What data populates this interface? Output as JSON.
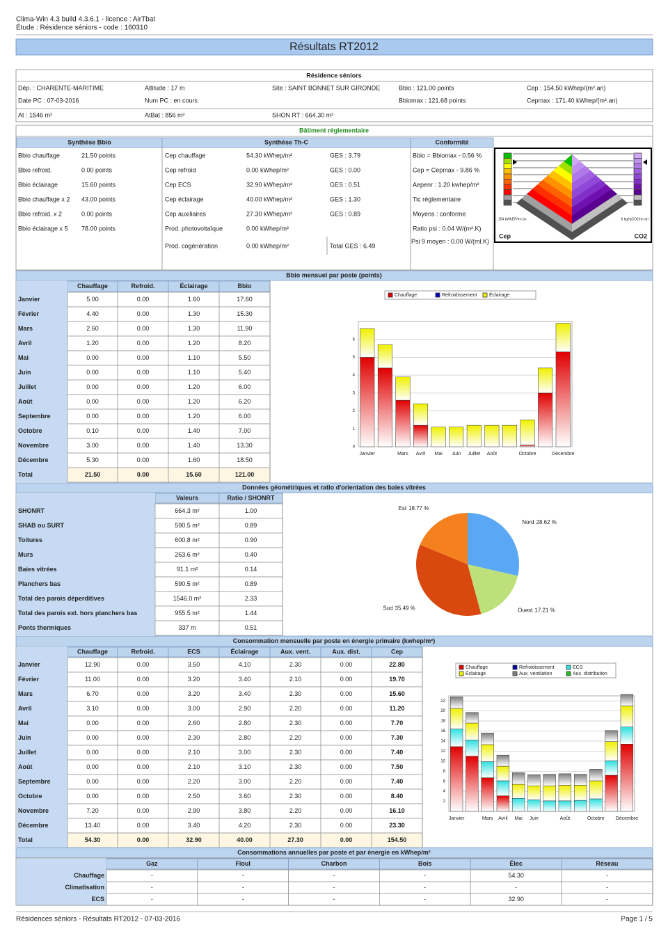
{
  "header": {
    "software": "Clima-Win 4.3 build 4.3.6.1 - licence : AirTbat",
    "study": "Étude : Résidence séniors - code : 160310"
  },
  "title": "Résultats RT2012",
  "info": {
    "title": "Résidence séniors",
    "rows": [
      [
        "Dép. :  CHARENTE-MARITIME",
        "Altitude : 17 m",
        "Site : SAINT BONNET SUR GIRONDE",
        "Bbio : 121.00 points",
        "Cep : 154.50 kWhep/(m².an)"
      ],
      [
        "Date PC : 07-03-2016",
        "Num PC : en cours",
        null,
        "Bbiomax : 121.68 points",
        "Cepmax : 171.40 kWhep/(m².an)"
      ],
      [
        "At : 1546 m²",
        "AtBat : 856 m²",
        "SHON RT : 664.30 m²",
        null,
        null
      ]
    ]
  },
  "batiment": {
    "title": "Bâtiment réglementaire",
    "bbio": {
      "title": "Synthèse Bbio",
      "rows": [
        [
          "Bbio chauffage",
          "21.50 points"
        ],
        [
          "Bbio refroid.",
          "0.00 points"
        ],
        [
          "Bbio éclairage",
          "15.60 points"
        ],
        [
          "Bbio chauffage x 2",
          "43.00 points"
        ],
        [
          "Bbio refroid. x 2",
          "0.00 points"
        ],
        [
          "Bbio éclairage x 5",
          "78.00 points"
        ]
      ]
    },
    "thc": {
      "title": "Synthèse Th-C",
      "rows": [
        [
          "Cep chauffage",
          "54.30 kWhep/m²",
          "GES : 3.79"
        ],
        [
          "Cep refroid",
          "0.00 kWhep/m²",
          "GES : 0.00"
        ],
        [
          "Cep ECS",
          "32.90 kWhep/m²",
          "GES : 0.51"
        ],
        [
          "Cep éclairage",
          "40.00 kWhep/m²",
          "GES : 1.30"
        ],
        [
          "Cep auxiliaires",
          "27.30 kWhep/m²",
          "GES : 0.89"
        ],
        [
          "Prod. photovoltaïque",
          "0.00 kWhep/m²",
          null
        ],
        [
          "Prod. cogénération",
          "0.00 kWhep/m²",
          "Total GES : 6.49"
        ]
      ]
    },
    "conformite": {
      "title": "Conformité",
      "rows": [
        "Bbio = Bbiomax - 0.56 %",
        "Cep = Cepmax - 9.86 %",
        "Aepenr : 1.20 kwhep/m²",
        "Tic réglementaire",
        "Moyens : conforme",
        "Ratio psi : 0.04 W/(m².K)",
        "Psi 9 moyen : 0.00 W/(ml.K)"
      ]
    },
    "graphic": {
      "cep": "Cep",
      "co2": "CO2",
      "cep_value": "154 kWhEP/m².an",
      "co2_value": "6 kgéqCO2/m².an"
    }
  },
  "bbio_mensuel": {
    "title": "Bbio mensuel par poste (points)",
    "columns": [
      null,
      "Chauffage",
      "Refroid.",
      "Éclairage",
      "Bbio"
    ],
    "rows": [
      [
        "Janvier",
        "5.00",
        "0.00",
        "1.60",
        "17.60"
      ],
      [
        "Février",
        "4.40",
        "0.00",
        "1.30",
        "15.30"
      ],
      [
        "Mars",
        "2.60",
        "0.00",
        "1.30",
        "11.90"
      ],
      [
        "Avril",
        "1.20",
        "0.00",
        "1.20",
        "8.20"
      ],
      [
        "Mai",
        "0.00",
        "0.00",
        "1.10",
        "5.50"
      ],
      [
        "Juin",
        "0.00",
        "0.00",
        "1.10",
        "5.40"
      ],
      [
        "Juillet",
        "0.00",
        "0.00",
        "1.20",
        "6.00"
      ],
      [
        "Août",
        "0.00",
        "0.00",
        "1.20",
        "6.20"
      ],
      [
        "Septembre",
        "0.00",
        "0.00",
        "1.20",
        "6.00"
      ],
      [
        "Octobre",
        "0.10",
        "0.00",
        "1.40",
        "7.00"
      ],
      [
        "Novembre",
        "3.00",
        "0.00",
        "1.40",
        "13.30"
      ],
      [
        "Décembre",
        "5.30",
        "0.00",
        "1.60",
        "18.50"
      ],
      [
        "Total",
        "21.50",
        "0.00",
        "15.60",
        "121.00"
      ]
    ]
  },
  "geometrie": {
    "title": "Données géométriques et ratio d'orientation des baies vitrées",
    "columns": [
      null,
      "Valeurs",
      "Ratio / SHONRT"
    ],
    "rows": [
      [
        "SHONRT",
        "664.3 m²",
        "1.00"
      ],
      [
        "SHAB ou SURT",
        "590.5 m²",
        "0.89"
      ],
      [
        "Toitures",
        "600.8 m²",
        "0.90"
      ],
      [
        "Murs",
        "263.6 m²",
        "0.40"
      ],
      [
        "Baies vitrées",
        "91.1 m²",
        "0.14"
      ],
      [
        "Planchers bas",
        "590.5 m²",
        "0.89"
      ],
      [
        "Total des parois déperditives",
        "1546.0 m²",
        "2.33"
      ],
      [
        "Total des parois ext. hors planchers bas",
        "955.5 m²",
        "1.44"
      ],
      [
        "Ponts thermiques",
        "337 m",
        "0.51"
      ]
    ]
  },
  "consommation": {
    "title": "Consommation mensuelle par poste en énergie primaire (kwhep/m²)",
    "columns": [
      null,
      "Chauffage",
      "Refroid.",
      "ECS",
      "Éclairage",
      "Aux. vent.",
      "Aux. dist.",
      "Cep"
    ],
    "rows": [
      [
        "Janvier",
        "12.90",
        "0.00",
        "3.50",
        "4.10",
        "2.30",
        "0.00",
        "22.80"
      ],
      [
        "Février",
        "11.00",
        "0.00",
        "3.20",
        "3.40",
        "2.10",
        "0.00",
        "19.70"
      ],
      [
        "Mars",
        "6.70",
        "0.00",
        "3.20",
        "3.40",
        "2.30",
        "0.00",
        "15.60"
      ],
      [
        "Avril",
        "3.10",
        "0.00",
        "3.00",
        "2.90",
        "2.20",
        "0.00",
        "11.20"
      ],
      [
        "Mai",
        "0.00",
        "0.00",
        "2.60",
        "2.80",
        "2.30",
        "0.00",
        "7.70"
      ],
      [
        "Juin",
        "0.00",
        "0.00",
        "2.30",
        "2.80",
        "2.20",
        "0.00",
        "7.30"
      ],
      [
        "Juillet",
        "0.00",
        "0.00",
        "2.10",
        "3.00",
        "2.30",
        "0.00",
        "7.40"
      ],
      [
        "Août",
        "0.00",
        "0.00",
        "2.10",
        "3.10",
        "2.30",
        "0.00",
        "7.50"
      ],
      [
        "Septembre",
        "0.00",
        "0.00",
        "2.20",
        "3.00",
        "2.20",
        "0.00",
        "7.40"
      ],
      [
        "Octobre",
        "0.00",
        "0.00",
        "2.50",
        "3.60",
        "2.30",
        "0.00",
        "8.40"
      ],
      [
        "Novembre",
        "7.20",
        "0.00",
        "2.90",
        "3.80",
        "2.20",
        "0.00",
        "16.10"
      ],
      [
        "Décembre",
        "13.40",
        "0.00",
        "3.40",
        "4.20",
        "2.30",
        "0.00",
        "23.30"
      ],
      [
        "Total",
        "54.30",
        "0.00",
        "32.90",
        "40.00",
        "27.30",
        "0.00",
        "154.50"
      ]
    ]
  },
  "annuelles": {
    "title": "Consommations annuelles par poste et par énergie en kWhep/m²",
    "columns": [
      null,
      "Gaz",
      "Fioul",
      "Charbon",
      "Bois",
      "Élec",
      "Réseau"
    ],
    "rows": [
      [
        "Chauffage",
        "-",
        "-",
        "-",
        "-",
        "54.30",
        "-"
      ],
      [
        "Climatisation",
        "-",
        "-",
        "-",
        "-",
        "-",
        "-"
      ],
      [
        "ECS",
        "-",
        "-",
        "-",
        "-",
        "32.90",
        "-"
      ]
    ]
  },
  "footer": {
    "left": "Résidences séniors - Résultats RT2012 - 07-03-2016",
    "right": "Page 1 / 5"
  },
  "chart_data": [
    {
      "type": "bar",
      "stacked": true,
      "categories": [
        "Janvier",
        null,
        "Mars",
        "Avril",
        "Mai",
        "Juin",
        "Juillet",
        "Août",
        null,
        "Octobre",
        null,
        "Décembre"
      ],
      "series": [
        {
          "name": "Chauffage",
          "color": "#e00000",
          "values": [
            5,
            4.4,
            2.6,
            1.2,
            0,
            0,
            0,
            0,
            0,
            0.1,
            3,
            5.3
          ]
        },
        {
          "name": "Refroidissement",
          "color": "#0000c0",
          "values": [
            0,
            0,
            0,
            0,
            0,
            0,
            0,
            0,
            0,
            0,
            0,
            0
          ]
        },
        {
          "name": "Éclairage",
          "color": "#f0f000",
          "values": [
            1.6,
            1.3,
            1.3,
            1.2,
            1.1,
            1.1,
            1.2,
            1.2,
            1.2,
            1.4,
            1.4,
            1.6
          ]
        }
      ],
      "ylim": [
        0,
        7
      ],
      "yticks": [
        0,
        1,
        2,
        3,
        4,
        5,
        6
      ],
      "grid": true
    },
    {
      "type": "pie",
      "categories": [
        "Nord",
        "Ouest",
        "Sud",
        "Est"
      ],
      "values": [
        28.62,
        17.21,
        35.49,
        18.77
      ],
      "value_labels": [
        "28.62 %",
        "17.21 %",
        "35.49 %",
        "18.77 %"
      ],
      "colors": [
        "#5aa8f5",
        "#bde07a",
        "#d9480f",
        "#f5801e"
      ]
    },
    {
      "type": "bar",
      "stacked": true,
      "categories": [
        "Janvier",
        null,
        "Mars",
        "Avril",
        "Mai",
        "Juin",
        null,
        "Août",
        null,
        "Octobre",
        null,
        "Décembre"
      ],
      "series": [
        {
          "name": "Chauffage",
          "color": "#e00000",
          "values": [
            12.9,
            11,
            6.7,
            3.1,
            0,
            0,
            0,
            0,
            0,
            0,
            7.2,
            13.4
          ]
        },
        {
          "name": "Refroidissement",
          "color": "#0000a0",
          "values": [
            0,
            0,
            0,
            0,
            0,
            0,
            0,
            0,
            0,
            0,
            0,
            0
          ]
        },
        {
          "name": "ECS",
          "color": "#30e0e0",
          "values": [
            3.5,
            3.2,
            3.2,
            3,
            2.6,
            2.3,
            2.1,
            2.1,
            2.2,
            2.5,
            2.9,
            3.4
          ]
        },
        {
          "name": "Éclairage",
          "color": "#f0f000",
          "values": [
            4.1,
            3.4,
            3.4,
            2.9,
            2.8,
            2.8,
            3,
            3.1,
            3,
            3.6,
            3.8,
            4.2
          ]
        },
        {
          "name": "Aux. ventilation",
          "color": "#808080",
          "values": [
            2.3,
            2.1,
            2.3,
            2.2,
            2.3,
            2.2,
            2.3,
            2.3,
            2.2,
            2.3,
            2.2,
            2.3
          ]
        },
        {
          "name": "Aux. distribution",
          "color": "#20c020",
          "values": [
            0,
            0,
            0,
            0,
            0,
            0,
            0,
            0,
            0,
            0,
            0,
            0
          ]
        }
      ],
      "ylim": [
        0,
        23
      ],
      "yticks": [
        2,
        4,
        6,
        8,
        10,
        12,
        14,
        16,
        18,
        20,
        22
      ],
      "grid": true
    }
  ]
}
